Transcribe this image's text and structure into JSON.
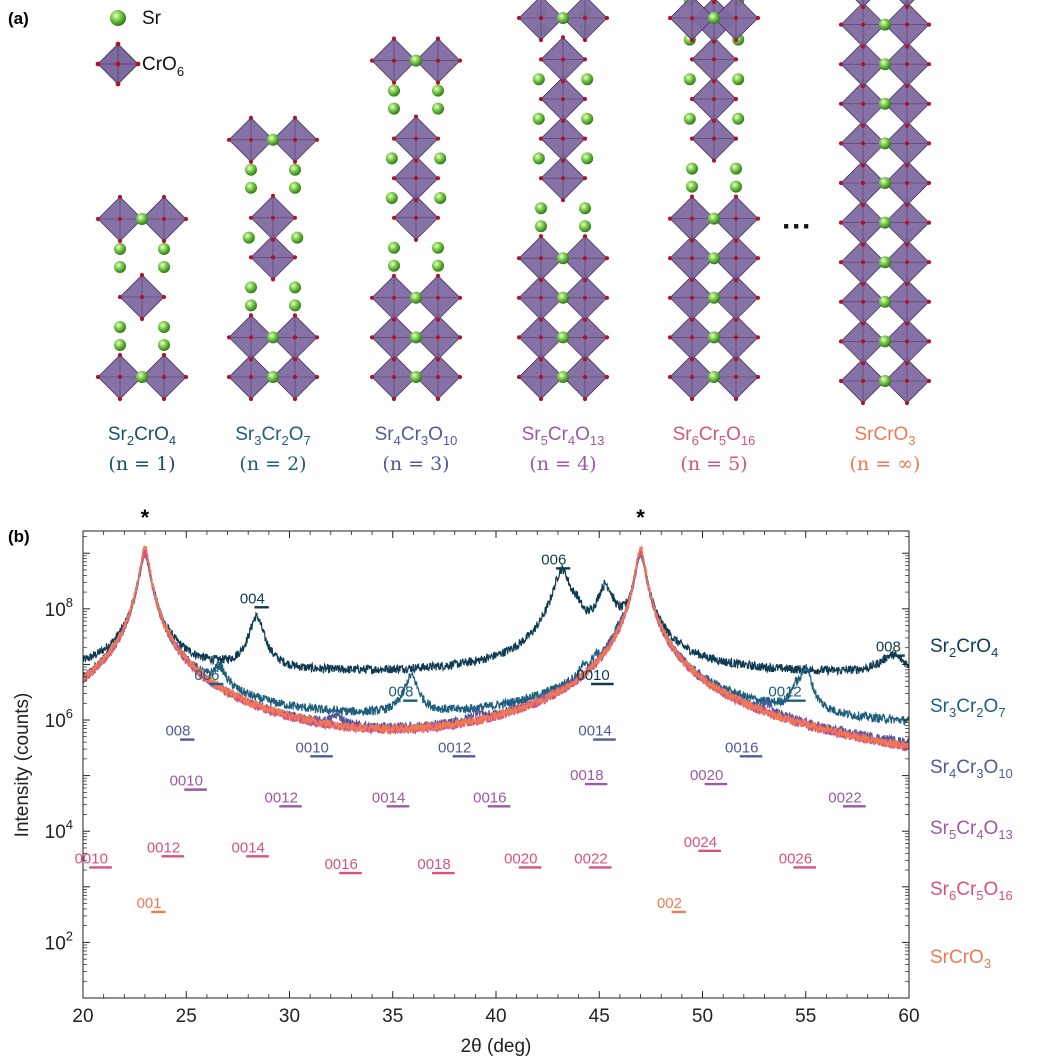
{
  "panel_a": {
    "label": "(a)",
    "legend": [
      {
        "icon": "sr-atom-icon",
        "text": "Sr"
      },
      {
        "icon": "cro6-octahedron-icon",
        "base": "CrO",
        "sub": "6"
      }
    ],
    "ellipsis": "···",
    "structures": [
      {
        "n": "1",
        "parts": [
          [
            "Sr",
            ""
          ],
          [
            "2",
            "sub"
          ],
          [
            "CrO",
            ""
          ],
          [
            "4",
            "sub"
          ]
        ],
        "n_label": "(n = 1)",
        "color": "#1d4e67",
        "blocks": [
          2,
          2
        ]
      },
      {
        "n": "2",
        "parts": [
          [
            "Sr",
            ""
          ],
          [
            "3",
            "sub"
          ],
          [
            "Cr",
            ""
          ],
          [
            "2",
            "sub"
          ],
          [
            "O",
            ""
          ],
          [
            "7",
            "sub"
          ]
        ],
        "n_label": "(n = 2)",
        "color": "#1e5f7e",
        "blocks": [
          3,
          3
        ]
      },
      {
        "n": "3",
        "parts": [
          [
            "Sr",
            ""
          ],
          [
            "4",
            "sub"
          ],
          [
            "Cr",
            ""
          ],
          [
            "3",
            "sub"
          ],
          [
            "O",
            ""
          ],
          [
            "10",
            "sub"
          ]
        ],
        "n_label": "(n = 3)",
        "color": "#53589a",
        "blocks": [
          4,
          4
        ]
      },
      {
        "n": "4",
        "parts": [
          [
            "Sr",
            ""
          ],
          [
            "5",
            "sub"
          ],
          [
            "Cr",
            ""
          ],
          [
            "4",
            "sub"
          ],
          [
            "O",
            ""
          ],
          [
            "13",
            "sub"
          ]
        ],
        "n_label": "(n = 4)",
        "color": "#9b5aa3",
        "blocks": [
          5,
          5
        ]
      },
      {
        "n": "5",
        "parts": [
          [
            "Sr",
            ""
          ],
          [
            "6",
            "sub"
          ],
          [
            "Cr",
            ""
          ],
          [
            "5",
            "sub"
          ],
          [
            "O",
            ""
          ],
          [
            "16",
            "sub"
          ]
        ],
        "n_label": "(n = 5)",
        "color": "#d8527f",
        "blocks": [
          6,
          6
        ]
      },
      {
        "n": "∞",
        "parts": [
          [
            "SrCrO",
            ""
          ],
          [
            "3",
            "sub"
          ]
        ],
        "n_label": "(n = ∞)",
        "color": "#f07954",
        "blocks": [
          17
        ]
      }
    ]
  },
  "chart_data": {
    "type": "line",
    "panel_label": "(b)",
    "title": "",
    "xlabel": "2θ (deg)",
    "ylabel": "Intensity (counts)",
    "xlim": [
      20,
      60
    ],
    "ylim_log10": [
      1,
      9.4
    ],
    "y_scale": "log",
    "x_ticks": [
      "20",
      "25",
      "30",
      "35",
      "40",
      "45",
      "50",
      "55",
      "60"
    ],
    "y_ticks": [
      {
        "base": "10",
        "exp": "2"
      },
      {
        "base": "10",
        "exp": "4"
      },
      {
        "base": "10",
        "exp": "6"
      },
      {
        "base": "10",
        "exp": "8"
      }
    ],
    "substrate_peaks": [
      {
        "x": 23.0,
        "label": "*"
      },
      {
        "x": 47.0,
        "label": "*"
      }
    ],
    "legend_position": "right",
    "series": [
      {
        "name_parts": [
          [
            "Sr",
            ""
          ],
          [
            "2",
            "sub"
          ],
          [
            "CrO",
            ""
          ],
          [
            "4",
            "sub"
          ]
        ],
        "color": "#0f3b52",
        "baseline_log": 6.8,
        "peaks": [
          [
            23.0,
            2.2,
            0.22
          ],
          [
            28.4,
            1.05,
            0.3
          ],
          [
            43.2,
            1.9,
            0.35
          ],
          [
            43.9,
            1.0,
            0.22
          ],
          [
            45.3,
            1.6,
            0.35
          ],
          [
            47.0,
            2.2,
            0.22
          ],
          [
            59.2,
            0.35,
            0.6
          ]
        ],
        "reflections": [
          {
            "x": 28.5,
            "pre": "00",
            "idx": "4",
            "lx": 28.2,
            "ly": 8.1
          },
          {
            "x": 43.3,
            "pre": "00",
            "idx": "6",
            "lx": 42.8,
            "ly": 8.8
          },
          {
            "x": 45.0,
            "pre": "00",
            "idx": "10",
            "lx": 44.7,
            "ly": 6.72
          },
          {
            "x": 59.4,
            "pre": "00",
            "idx": "8",
            "lx": 59.0,
            "ly": 7.23
          }
        ]
      },
      {
        "name_parts": [
          [
            "Sr",
            ""
          ],
          [
            "3",
            "sub"
          ],
          [
            "Cr",
            ""
          ],
          [
            "2",
            "sub"
          ],
          [
            "O",
            ""
          ],
          [
            "7",
            "sub"
          ]
        ],
        "color": "#1e5f7e",
        "baseline_log": 5.8,
        "peaks": [
          [
            23.0,
            3.2,
            0.22
          ],
          [
            26.6,
            0.95,
            0.3
          ],
          [
            35.9,
            0.95,
            0.3
          ],
          [
            44.2,
            0.7,
            0.15
          ],
          [
            44.8,
            0.9,
            0.15
          ],
          [
            46.0,
            1.3,
            0.3
          ],
          [
            47.0,
            3.2,
            0.22
          ],
          [
            54.5,
            0.6,
            0.2
          ],
          [
            55.0,
            1.1,
            0.25
          ]
        ],
        "reflections": [
          {
            "x": 26.2,
            "pre": "00",
            "idx": "6",
            "lx": 26.0,
            "ly": 6.72
          },
          {
            "x": 36.0,
            "pre": "00",
            "idx": "8",
            "lx": 35.4,
            "ly": 6.42
          },
          {
            "x": 55.0,
            "pre": "00",
            "idx": "12",
            "lx": 54.0,
            "ly": 6.42
          }
        ]
      },
      {
        "name_parts": [
          [
            "Sr",
            ""
          ],
          [
            "4",
            "sub"
          ],
          [
            "Cr",
            ""
          ],
          [
            "3",
            "sub"
          ],
          [
            "O",
            ""
          ],
          [
            "10",
            "sub"
          ]
        ],
        "color": "#53589a",
        "baseline_log": 4.8,
        "peaks": [
          [
            23.0,
            4.2,
            0.22
          ],
          [
            25.5,
            0.85,
            0.3
          ],
          [
            32.3,
            0.85,
            0.3
          ],
          [
            39.1,
            0.85,
            0.3
          ],
          [
            46.1,
            2.3,
            0.35
          ],
          [
            47.0,
            4.2,
            0.22
          ],
          [
            53.2,
            1.0,
            0.3
          ]
        ],
        "reflections": [
          {
            "x": 25.5,
            "pre": "00",
            "idx": "8",
            "lx": 24.6,
            "ly": 5.72
          },
          {
            "x": 31.5,
            "pre": "00",
            "idx": "10",
            "lx": 31.1,
            "ly": 5.42
          },
          {
            "x": 38.7,
            "pre": "00",
            "idx": "12",
            "lx": 38.0,
            "ly": 5.42
          },
          {
            "x": 45.3,
            "pre": "00",
            "idx": "14",
            "lx": 44.8,
            "ly": 5.72
          },
          {
            "x": 52.7,
            "pre": "00",
            "idx": "16",
            "lx": 51.9,
            "ly": 5.42
          }
        ]
      },
      {
        "name_parts": [
          [
            "Sr",
            ""
          ],
          [
            "5",
            "sub"
          ],
          [
            "Cr",
            ""
          ],
          [
            "4",
            "sub"
          ],
          [
            "O",
            ""
          ],
          [
            "13",
            "sub"
          ]
        ],
        "color": "#9b5aa3",
        "baseline_log": 4.0,
        "peaks": [
          [
            23.0,
            5.0,
            0.22
          ],
          [
            25.1,
            0.8,
            0.3
          ],
          [
            30.3,
            0.6,
            0.3
          ],
          [
            35.6,
            0.6,
            0.3
          ],
          [
            40.8,
            0.6,
            0.3
          ],
          [
            46.2,
            1.9,
            0.35
          ],
          [
            47.0,
            5.0,
            0.22
          ],
          [
            51.7,
            1.0,
            0.3
          ],
          [
            57.3,
            0.5,
            0.3
          ]
        ],
        "reflections": [
          {
            "x": 25.6,
            "pre": "00",
            "idx": "10",
            "lx": 25.0,
            "ly": 4.82
          },
          {
            "x": 29.9,
            "pre": "00",
            "idx": "12",
            "lx": 29.6,
            "ly": 4.52
          },
          {
            "x": 35.4,
            "pre": "00",
            "idx": "14",
            "lx": 34.8,
            "ly": 4.52
          },
          {
            "x": 40.2,
            "pre": "00",
            "idx": "16",
            "lx": 39.7,
            "ly": 4.52
          },
          {
            "x": 45.1,
            "pre": "00",
            "idx": "18",
            "lx": 44.4,
            "ly": 4.92
          },
          {
            "x": 51.0,
            "pre": "00",
            "idx": "20",
            "lx": 50.2,
            "ly": 4.92
          },
          {
            "x": 57.2,
            "pre": "00",
            "idx": "22",
            "lx": 56.9,
            "ly": 4.52
          }
        ]
      },
      {
        "name_parts": [
          [
            "Sr",
            ""
          ],
          [
            "6",
            "sub"
          ],
          [
            "Cr",
            ""
          ],
          [
            "5",
            "sub"
          ],
          [
            "O",
            ""
          ],
          [
            "16",
            "sub"
          ]
        ],
        "color": "#d8527f",
        "baseline_log": 3.0,
        "peaks": [
          [
            20.4,
            0.4,
            0.25
          ],
          [
            23.0,
            6.0,
            0.22
          ],
          [
            24.6,
            1.0,
            0.3
          ],
          [
            28.8,
            0.6,
            0.3
          ],
          [
            33.1,
            0.5,
            0.3
          ],
          [
            37.4,
            0.45,
            0.3
          ],
          [
            41.7,
            0.55,
            0.3
          ],
          [
            46.2,
            1.6,
            0.35
          ],
          [
            47.0,
            6.0,
            0.22
          ],
          [
            50.6,
            0.9,
            0.3
          ],
          [
            55.2,
            0.5,
            0.3
          ]
        ],
        "reflections": [
          {
            "x": 21.4,
            "pre": "00",
            "idx": "10",
            "lx": 20.4,
            "ly": 3.42
          },
          {
            "x": 24.7,
            "pre": "00",
            "idx": "12",
            "lx": 23.9,
            "ly": 3.62
          },
          {
            "x": 28.6,
            "pre": "00",
            "idx": "14",
            "lx": 28.0,
            "ly": 3.62
          },
          {
            "x": 33.2,
            "pre": "00",
            "idx": "16",
            "lx": 32.5,
            "ly": 3.32
          },
          {
            "x": 37.6,
            "pre": "00",
            "idx": "18",
            "lx": 37.0,
            "ly": 3.32
          },
          {
            "x": 41.8,
            "pre": "00",
            "idx": "20",
            "lx": 41.2,
            "ly": 3.42
          },
          {
            "x": 45.3,
            "pre": "00",
            "idx": "22",
            "lx": 44.6,
            "ly": 3.42
          },
          {
            "x": 50.6,
            "pre": "00",
            "idx": "24",
            "lx": 49.9,
            "ly": 3.72
          },
          {
            "x": 55.1,
            "pre": "00",
            "idx": "26",
            "lx": 54.5,
            "ly": 3.42
          }
        ]
      },
      {
        "name_parts": [
          [
            "SrCrO",
            ""
          ],
          [
            "3",
            "sub"
          ]
        ],
        "color": "#f07954",
        "baseline_log": 1.95,
        "peaks": [
          [
            23.0,
            7.15,
            0.2
          ],
          [
            23.6,
            0.6,
            0.25
          ],
          [
            46.6,
            1.1,
            0.6
          ],
          [
            47.0,
            7.15,
            0.2
          ],
          [
            48.0,
            1.3,
            0.55
          ],
          [
            49.1,
            0.45,
            0.2
          ]
        ],
        "reflections": [
          {
            "x": 23.5,
            "pre": "00",
            "idx": "1",
            "lx": 23.2,
            "ly": 2.62
          },
          {
            "x": 48.8,
            "pre": "00",
            "idx": "2",
            "lx": 48.4,
            "ly": 2.62
          }
        ]
      }
    ]
  },
  "colors": {
    "octahedron_fill": "#7f6aa0",
    "octahedron_edge": "#4e3d6e",
    "oxygen": "#b3122b",
    "sr_center": "#c8ef9b",
    "sr_edge": "#2e8a1f",
    "axis": "#222222"
  }
}
